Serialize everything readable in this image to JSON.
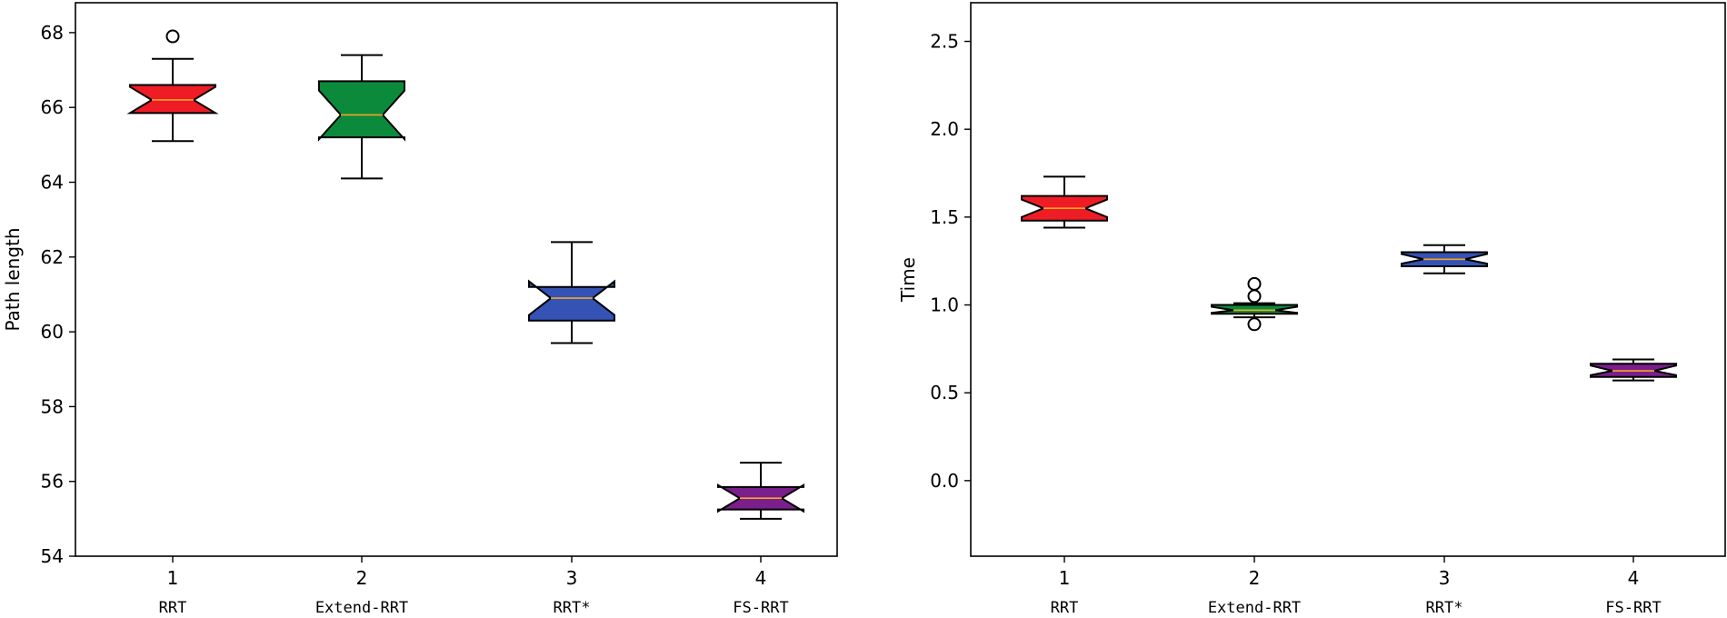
{
  "chart_data": [
    {
      "type": "boxplot",
      "title": "",
      "xlabel": "",
      "ylabel": "Path length",
      "ylim": [
        54,
        68.8
      ],
      "yticks": [
        54,
        56,
        58,
        60,
        62,
        64,
        66,
        68
      ],
      "xticks": [
        "1",
        "2",
        "3",
        "4"
      ],
      "categories": [
        "RRT",
        "Extend-RRT",
        "RRT*",
        "FS-RRT"
      ],
      "colors": [
        "#ee1c25",
        "#0b8a3b",
        "#3553b5",
        "#7b1f8c"
      ],
      "median_color": "#f5a623",
      "boxes": [
        {
          "category": "RRT",
          "whisker_low": 65.1,
          "q1": 65.85,
          "median": 66.2,
          "q3": 66.6,
          "whisker_high": 67.3,
          "notch_low": 65.85,
          "notch_high": 66.55,
          "outliers": [
            67.9
          ]
        },
        {
          "category": "Extend-RRT",
          "whisker_low": 64.1,
          "q1": 65.2,
          "median": 65.8,
          "q3": 66.7,
          "whisker_high": 67.4,
          "notch_low": 65.15,
          "notch_high": 66.45,
          "outliers": []
        },
        {
          "category": "RRT*",
          "whisker_low": 59.7,
          "q1": 60.3,
          "median": 60.9,
          "q3": 61.2,
          "whisker_high": 62.4,
          "notch_low": 60.45,
          "notch_high": 61.35,
          "outliers": []
        },
        {
          "category": "FS-RRT",
          "whisker_low": 55.0,
          "q1": 55.25,
          "median": 55.55,
          "q3": 55.85,
          "whisker_high": 56.5,
          "notch_low": 55.2,
          "notch_high": 55.9,
          "outliers": []
        }
      ]
    },
    {
      "type": "boxplot",
      "title": "",
      "xlabel": "",
      "ylabel": "Time",
      "ylim": [
        -0.43,
        2.72
      ],
      "yticks": [
        0.0,
        0.5,
        1.0,
        1.5,
        2.0,
        2.5
      ],
      "ytick_labels": [
        "0.0",
        "0.5",
        "1.0",
        "1.5",
        "2.0",
        "2.5"
      ],
      "xticks": [
        "1",
        "2",
        "3",
        "4"
      ],
      "categories": [
        "RRT",
        "Extend-RRT",
        "RRT*",
        "FS-RRT"
      ],
      "colors": [
        "#ee1c25",
        "#0b8a3b",
        "#3553b5",
        "#7b1f8c"
      ],
      "median_color": "#f5a623",
      "boxes": [
        {
          "category": "RRT",
          "whisker_low": 1.44,
          "q1": 1.48,
          "median": 1.55,
          "q3": 1.62,
          "whisker_high": 1.73,
          "notch_low": 1.5,
          "notch_high": 1.6,
          "outliers": []
        },
        {
          "category": "Extend-RRT",
          "whisker_low": 0.93,
          "q1": 0.95,
          "median": 0.97,
          "q3": 1.0,
          "whisker_high": 1.01,
          "notch_low": 0.955,
          "notch_high": 0.99,
          "outliers": [
            0.89,
            1.05,
            1.12
          ]
        },
        {
          "category": "RRT*",
          "whisker_low": 1.18,
          "q1": 1.22,
          "median": 1.26,
          "q3": 1.3,
          "whisker_high": 1.34,
          "notch_low": 1.235,
          "notch_high": 1.29,
          "outliers": []
        },
        {
          "category": "FS-RRT",
          "whisker_low": 0.57,
          "q1": 0.59,
          "median": 0.625,
          "q3": 0.665,
          "whisker_high": 0.69,
          "notch_low": 0.6,
          "notch_high": 0.655,
          "outliers": []
        }
      ]
    }
  ]
}
